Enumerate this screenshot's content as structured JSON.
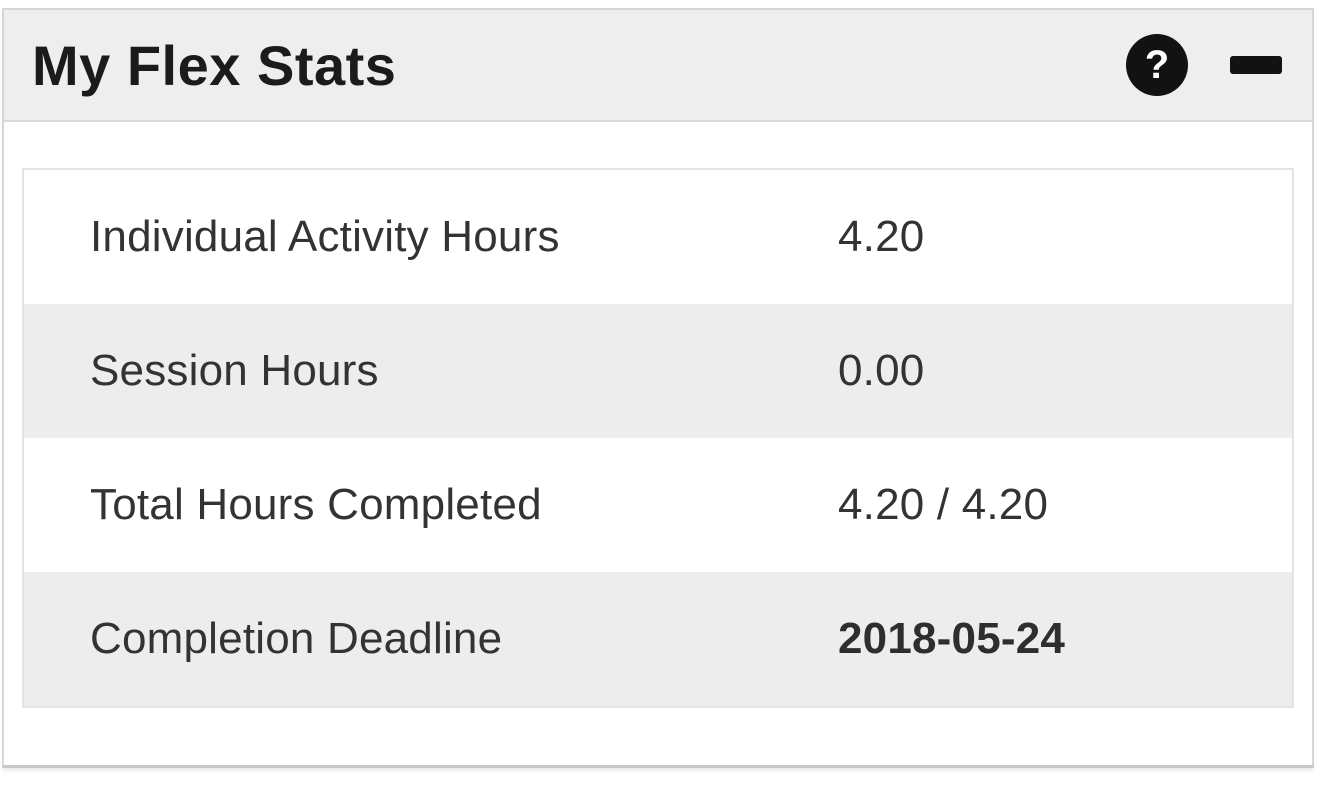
{
  "widget": {
    "title": "My Flex Stats",
    "controls": {
      "help_label": "?",
      "minimize_name": "minimize"
    },
    "colors": {
      "header_bg": "#eeeeee",
      "alt_row_bg": "#ededed",
      "border": "#d6d6d6",
      "table_border": "#e4e4e4",
      "icon_bg": "#121212",
      "text": "#333333",
      "title_text": "#1b1b1b"
    }
  },
  "stats": {
    "rows": [
      {
        "label": "Individual Activity Hours",
        "value": "4.20"
      },
      {
        "label": "Session Hours",
        "value": "0.00"
      },
      {
        "label": "Total Hours Completed",
        "value": "4.20 / 4.20"
      },
      {
        "label": "Completion Deadline",
        "value": "2018-05-24"
      }
    ]
  }
}
